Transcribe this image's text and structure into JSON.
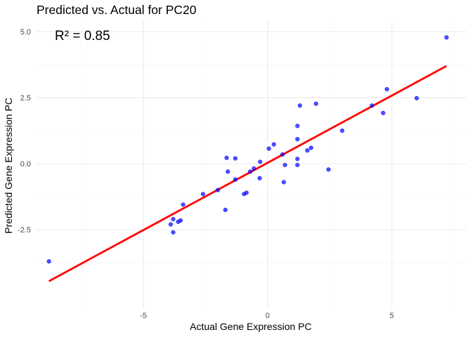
{
  "chart_data": {
    "type": "scatter",
    "title": "Predicted vs. Actual for PC20",
    "xlabel": "Actual Gene Expression PC",
    "ylabel": "Predicted Gene Expression PC",
    "xlim": [
      -9.3,
      8.0
    ],
    "ylim": [
      -5.5,
      5.4
    ],
    "x_ticks": [
      -5,
      0,
      5
    ],
    "x_tick_labels": [
      "-5",
      "0",
      "5"
    ],
    "y_ticks": [
      -2.5,
      0.0,
      2.5,
      5.0
    ],
    "y_tick_labels": [
      "-2.5",
      "0.0",
      "2.5",
      "5.0"
    ],
    "grid": true,
    "annotation": "R² = 0.85",
    "point_color": "#0000ff",
    "line_color": "#ff0000",
    "points": [
      {
        "x": -8.8,
        "y": -3.7
      },
      {
        "x": -3.9,
        "y": -2.3
      },
      {
        "x": -3.8,
        "y": -2.6
      },
      {
        "x": -3.8,
        "y": -2.1
      },
      {
        "x": -3.6,
        "y": -2.2
      },
      {
        "x": -3.5,
        "y": -2.15
      },
      {
        "x": -3.4,
        "y": -1.55
      },
      {
        "x": -2.6,
        "y": -1.15
      },
      {
        "x": -2.0,
        "y": -1.0
      },
      {
        "x": -1.7,
        "y": -1.75
      },
      {
        "x": -1.65,
        "y": 0.22
      },
      {
        "x": -1.6,
        "y": -0.3
      },
      {
        "x": -1.3,
        "y": 0.2
      },
      {
        "x": -1.3,
        "y": -0.6
      },
      {
        "x": -0.95,
        "y": -1.15
      },
      {
        "x": -0.85,
        "y": -1.1
      },
      {
        "x": -0.7,
        "y": -0.3
      },
      {
        "x": -0.55,
        "y": -0.18
      },
      {
        "x": -0.3,
        "y": 0.07
      },
      {
        "x": -0.32,
        "y": -0.55
      },
      {
        "x": 0.05,
        "y": 0.57
      },
      {
        "x": 0.25,
        "y": 0.73
      },
      {
        "x": 0.6,
        "y": 0.35
      },
      {
        "x": 0.7,
        "y": -0.05
      },
      {
        "x": 0.65,
        "y": -0.7
      },
      {
        "x": 1.2,
        "y": 1.43
      },
      {
        "x": 1.2,
        "y": 0.93
      },
      {
        "x": 1.2,
        "y": 0.18
      },
      {
        "x": 1.2,
        "y": -0.05
      },
      {
        "x": 1.3,
        "y": 2.2
      },
      {
        "x": 1.6,
        "y": 0.5
      },
      {
        "x": 1.75,
        "y": 0.6
      },
      {
        "x": 1.95,
        "y": 2.27
      },
      {
        "x": 2.45,
        "y": -0.22
      },
      {
        "x": 3.0,
        "y": 1.25
      },
      {
        "x": 4.2,
        "y": 2.2
      },
      {
        "x": 4.65,
        "y": 1.92
      },
      {
        "x": 4.8,
        "y": 2.82
      },
      {
        "x": 6.0,
        "y": 2.48
      },
      {
        "x": 7.2,
        "y": 4.78
      }
    ],
    "fit_line": {
      "x": [
        -8.8,
        7.2
      ],
      "y": [
        -4.45,
        3.7
      ]
    }
  }
}
